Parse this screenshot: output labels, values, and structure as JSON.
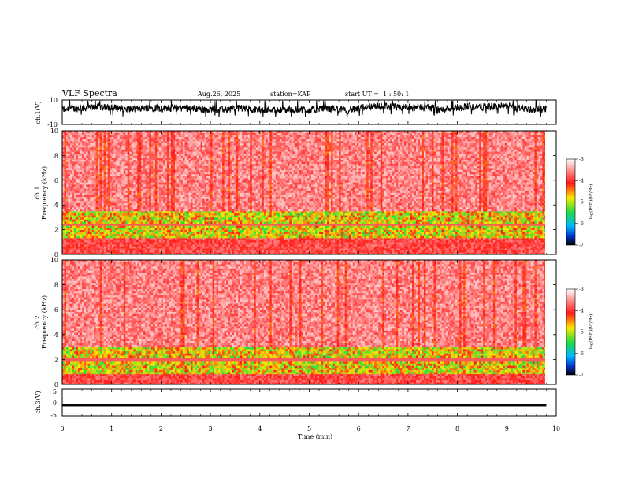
{
  "header": {
    "title": "VLF Spectra",
    "date": "Aug.26, 2025",
    "station": "station=KAP",
    "start": "start UT =  1 : 50: 1"
  },
  "colors": {
    "spectrum_high": "#ff2a2a",
    "spectrum_mid": "#ffe800",
    "spectrum_low": "#22dd44",
    "spectrum_min": "#0033cc",
    "waveform": "#000000",
    "frame": "#000000"
  },
  "chart_data": [
    {
      "type": "line",
      "panel": "ch1-waveform",
      "ylabel": "ch.1(V)",
      "yticks": [
        "10",
        "-10"
      ],
      "ylim": [
        -10,
        10
      ],
      "xlim": [
        0,
        10
      ],
      "description_of_data": "continuous ~ -3 V to +7 V noisy waveform from 0 to 9.8 min"
    },
    {
      "type": "heatmap",
      "panel": "ch1-spectrogram",
      "ylabel": "ch.1\nFrequency (kHz)",
      "ylabel_line1": "ch.1",
      "ylabel_line2": "Frequency (kHz)",
      "yticks": [
        "0",
        "2",
        "4",
        "6",
        "8",
        "10"
      ],
      "ylim": [
        0,
        10
      ],
      "xlim": [
        0,
        10
      ],
      "x_extent": [
        0,
        9.8
      ],
      "colorbar": {
        "label": "log(PSD)(V²/Hz)",
        "ticks": [
          "-3",
          "-4",
          "-5",
          "-6",
          "-7"
        ],
        "range": [
          -7,
          -3
        ]
      },
      "bands": [
        {
          "f_low": 3.5,
          "f_high": 10,
          "log_psd": -3.6
        },
        {
          "f_low": 1.2,
          "f_high": 3.5,
          "log_psd": -4.8
        },
        {
          "f_low": 2.2,
          "f_high": 2.35,
          "log_psd": -3.8
        },
        {
          "f_low": 0,
          "f_high": 1.2,
          "log_psd": -3.9
        }
      ]
    },
    {
      "type": "heatmap",
      "panel": "ch2-spectrogram",
      "ylabel_line1": "ch.2",
      "ylabel_line2": "Frequency (kHz)",
      "yticks": [
        "0",
        "2",
        "4",
        "6",
        "8",
        "10"
      ],
      "ylim": [
        0,
        10
      ],
      "xlim": [
        0,
        10
      ],
      "x_extent": [
        0,
        9.8
      ],
      "colorbar": {
        "label": "log(PSD)(V²/Hz)",
        "ticks": [
          "-3",
          "-4",
          "-5",
          "-6",
          "-7"
        ],
        "range": [
          -7,
          -3
        ]
      },
      "bands": [
        {
          "f_low": 3.0,
          "f_high": 10,
          "log_psd": -3.6
        },
        {
          "f_low": 0.8,
          "f_high": 3.0,
          "log_psd": -4.8
        },
        {
          "f_low": 1.8,
          "f_high": 2.0,
          "log_psd": -3.8
        },
        {
          "f_low": 0,
          "f_high": 0.8,
          "log_psd": -3.9
        }
      ]
    },
    {
      "type": "line",
      "panel": "ch3-waveform",
      "ylabel": "ch.3(V)",
      "yticks": [
        "5",
        "0",
        "-5"
      ],
      "ylim": [
        -5,
        5
      ],
      "xlim": [
        0,
        10
      ],
      "band": [
        -1.6,
        -0.6
      ],
      "xlabel": "Time (min)",
      "xticks": [
        "0",
        "1",
        "2",
        "3",
        "4",
        "5",
        "6",
        "7",
        "8",
        "9",
        "10"
      ]
    }
  ]
}
